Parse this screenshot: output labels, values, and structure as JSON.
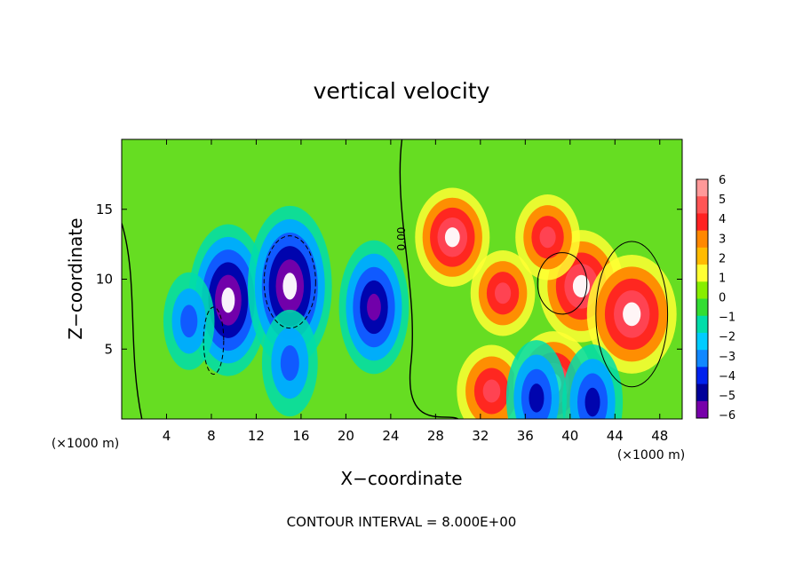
{
  "chart_data": {
    "type": "heatmap",
    "title": "vertical velocity",
    "xlabel": "X−coordinate",
    "ylabel": "Z−coordinate",
    "x_unit": "(×1000 m)",
    "xlim": [
      0,
      50
    ],
    "ylim": [
      0,
      20
    ],
    "x_ticks": [
      4,
      8,
      12,
      16,
      20,
      24,
      28,
      32,
      36,
      40,
      44,
      48
    ],
    "y_ticks": [
      5,
      10,
      15
    ],
    "colorbar": {
      "ticks": [
        6,
        5,
        4,
        3,
        2,
        1,
        0,
        -1,
        -2,
        -3,
        -4,
        -5,
        -6
      ],
      "tick_labels": [
        "6",
        "5",
        "4",
        "3",
        "2",
        "1",
        "0",
        "−1",
        "−2",
        "−3",
        "−4",
        "−5",
        "−6"
      ],
      "colors": [
        "#ff9999",
        "#ff5555",
        "#ff2222",
        "#ff8800",
        "#ffbb00",
        "#ffff33",
        "#88ee00",
        "#33dd33",
        "#00ddaa",
        "#00ccff",
        "#1188ff",
        "#0022ee",
        "#000099",
        "#7700aa"
      ]
    },
    "contour_label": "0.00",
    "footer": "CONTOUR INTERVAL = 8.000E+00",
    "features": [
      {
        "kind": "downdraft",
        "x": 9.5,
        "z": 8.5,
        "value": -9
      },
      {
        "kind": "downdraft",
        "x": 15,
        "z": 9.5,
        "value": -10
      },
      {
        "kind": "downdraft",
        "x": 22.5,
        "z": 8,
        "value": -7
      },
      {
        "kind": "downdraft",
        "x": 6,
        "z": 7,
        "value": -3
      },
      {
        "kind": "downdraft",
        "x": 15,
        "z": 4,
        "value": -4
      },
      {
        "kind": "updraft",
        "x": 29.5,
        "z": 13,
        "value": 7
      },
      {
        "kind": "updraft",
        "x": 41,
        "z": 9.5,
        "value": 9
      },
      {
        "kind": "updraft",
        "x": 45.5,
        "z": 7.5,
        "value": 10
      },
      {
        "kind": "updraft",
        "x": 38,
        "z": 13,
        "value": 5
      },
      {
        "kind": "updraft",
        "x": 34,
        "z": 9,
        "value": 5
      },
      {
        "kind": "updraft",
        "x": 33,
        "z": 2,
        "value": 6
      },
      {
        "kind": "updraft",
        "x": 38.5,
        "z": 2.5,
        "value": 8
      },
      {
        "kind": "downdraft",
        "x": 37,
        "z": 1.5,
        "value": -5
      },
      {
        "kind": "downdraft",
        "x": 42,
        "z": 1.2,
        "value": -5
      }
    ]
  }
}
